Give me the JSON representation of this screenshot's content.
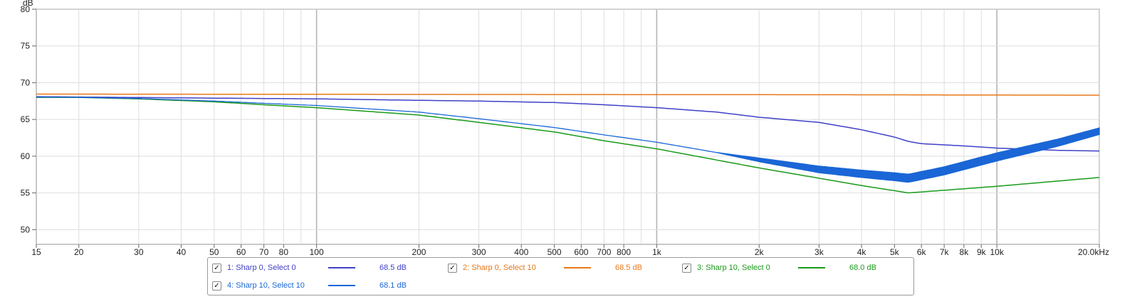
{
  "chart_data": {
    "type": "line",
    "ylabel": "dB",
    "xscale": "log",
    "xlim": [
      15,
      20000
    ],
    "ylim": [
      48,
      80
    ],
    "grid": true,
    "x_ticks": [
      {
        "v": 15,
        "label": "15"
      },
      {
        "v": 20,
        "label": "20"
      },
      {
        "v": 30,
        "label": "30"
      },
      {
        "v": 40,
        "label": "40"
      },
      {
        "v": 50,
        "label": "50"
      },
      {
        "v": 60,
        "label": "60"
      },
      {
        "v": 70,
        "label": "70"
      },
      {
        "v": 80,
        "label": "80"
      },
      {
        "v": 100,
        "label": "100"
      },
      {
        "v": 200,
        "label": "200"
      },
      {
        "v": 300,
        "label": "300"
      },
      {
        "v": 400,
        "label": "400"
      },
      {
        "v": 500,
        "label": "500"
      },
      {
        "v": 600,
        "label": "600"
      },
      {
        "v": 700,
        "label": "700"
      },
      {
        "v": 800,
        "label": "800"
      },
      {
        "v": 1000,
        "label": "1k"
      },
      {
        "v": 2000,
        "label": "2k"
      },
      {
        "v": 3000,
        "label": "3k"
      },
      {
        "v": 4000,
        "label": "4k"
      },
      {
        "v": 5000,
        "label": "5k"
      },
      {
        "v": 6000,
        "label": "6k"
      },
      {
        "v": 7000,
        "label": "7k"
      },
      {
        "v": 8000,
        "label": "8k"
      },
      {
        "v": 9000,
        "label": "9k"
      },
      {
        "v": 10000,
        "label": "10k"
      },
      {
        "v": 20000,
        "label": "20.0kHz"
      }
    ],
    "y_ticks": [
      50,
      55,
      60,
      65,
      70,
      75,
      80
    ],
    "series": [
      {
        "name": "1: Sharp 0, Select 0",
        "value_label": "68.5 dB",
        "color": "#4040c8",
        "points": [
          [
            15,
            68.1
          ],
          [
            20,
            68.05
          ],
          [
            50,
            67.9
          ],
          [
            100,
            67.8
          ],
          [
            200,
            67.6
          ],
          [
            300,
            67.5
          ],
          [
            500,
            67.3
          ],
          [
            700,
            67.0
          ],
          [
            1000,
            66.6
          ],
          [
            1500,
            66.0
          ],
          [
            2000,
            65.3
          ],
          [
            3000,
            64.6
          ],
          [
            4000,
            63.6
          ],
          [
            5000,
            62.6
          ],
          [
            5500,
            62.0
          ],
          [
            6000,
            61.7
          ],
          [
            8000,
            61.4
          ],
          [
            10000,
            61.1
          ],
          [
            15000,
            60.8
          ],
          [
            20000,
            60.7
          ]
        ]
      },
      {
        "name": "2: Sharp 0, Select 10",
        "value_label": "68.5 dB",
        "color": "#e8781a",
        "points": [
          [
            15,
            68.45
          ],
          [
            100,
            68.42
          ],
          [
            1000,
            68.38
          ],
          [
            5000,
            68.35
          ],
          [
            10000,
            68.32
          ],
          [
            20000,
            68.3
          ]
        ]
      },
      {
        "name": "3: Sharp 10, Select 0",
        "value_label": "68.0 dB",
        "color": "#1a9a1a",
        "points": [
          [
            15,
            68.0
          ],
          [
            20,
            68.0
          ],
          [
            30,
            67.8
          ],
          [
            50,
            67.4
          ],
          [
            70,
            67.0
          ],
          [
            100,
            66.6
          ],
          [
            200,
            65.6
          ],
          [
            300,
            64.6
          ],
          [
            500,
            63.3
          ],
          [
            700,
            62.1
          ],
          [
            1000,
            61.0
          ],
          [
            2000,
            58.4
          ],
          [
            3000,
            57.0
          ],
          [
            4000,
            56.0
          ],
          [
            5500,
            55.0
          ],
          [
            10000,
            55.9
          ],
          [
            20000,
            57.1
          ]
        ]
      },
      {
        "name": "4: Sharp 10, Select 10",
        "value_label": "68.1 dB",
        "color": "#1a66d6",
        "points": [
          [
            15,
            68.05
          ],
          [
            20,
            68.0
          ],
          [
            30,
            67.85
          ],
          [
            50,
            67.5
          ],
          [
            70,
            67.2
          ],
          [
            100,
            66.9
          ],
          [
            200,
            66.0
          ],
          [
            300,
            65.1
          ],
          [
            500,
            63.9
          ],
          [
            700,
            62.9
          ],
          [
            1000,
            61.9
          ],
          [
            2000,
            59.5
          ],
          [
            3000,
            58.2
          ],
          [
            4000,
            57.6
          ],
          [
            5000,
            57.2
          ],
          [
            5500,
            57.0
          ],
          [
            7000,
            58.0
          ],
          [
            10000,
            59.9
          ],
          [
            15000,
            61.8
          ],
          [
            20000,
            63.4
          ]
        ],
        "band_halfwidth": [
          [
            1500,
            0.0
          ],
          [
            2000,
            0.25
          ],
          [
            3000,
            0.45
          ],
          [
            5500,
            0.55
          ],
          [
            10000,
            0.55
          ],
          [
            20000,
            0.45
          ]
        ]
      }
    ]
  },
  "legend": {
    "check_glyph": "✓",
    "items": [
      {
        "name": "1: Sharp 0, Select 0",
        "value": "68.5 dB",
        "color": "#4040c8"
      },
      {
        "name": "2: Sharp 0, Select 10",
        "value": "68.5 dB",
        "color": "#e8781a"
      },
      {
        "name": "3: Sharp 10, Select 0",
        "value": "68.0 dB",
        "color": "#1a9a1a"
      },
      {
        "name": "4: Sharp 10, Select 10",
        "value": "68.1 dB",
        "color": "#1a66d6"
      }
    ]
  }
}
